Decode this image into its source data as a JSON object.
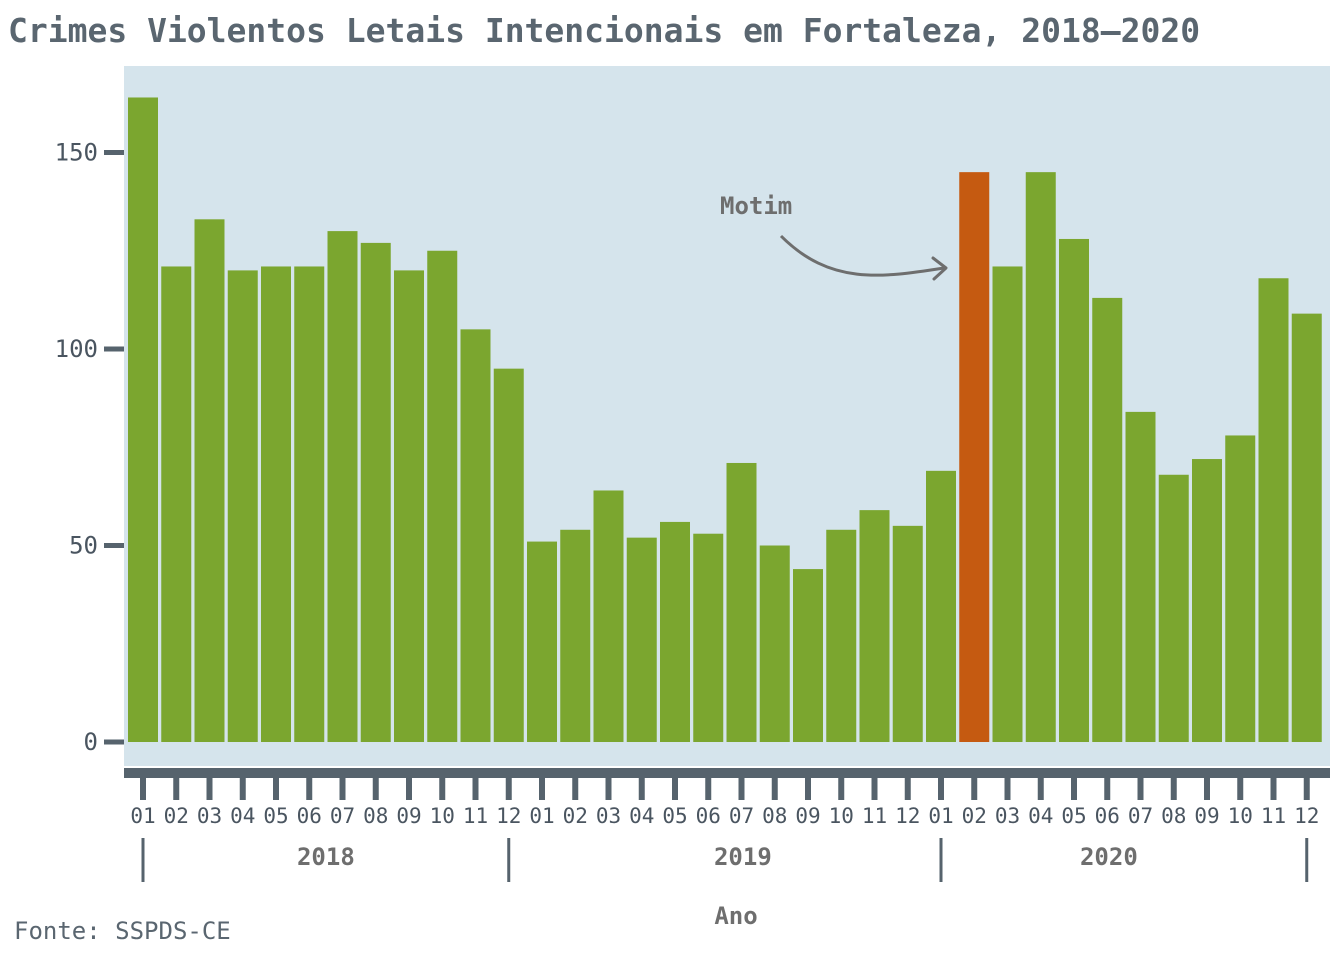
{
  "chart_data": {
    "type": "bar",
    "title": "Crimes Violentos Letais Intencionais em Fortaleza, 2018–2020",
    "xlabel": "Ano",
    "ylabel": "",
    "ylim": [
      0,
      165
    ],
    "yticks": [
      0,
      50,
      100,
      150
    ],
    "grid": false,
    "years": [
      "2018",
      "2019",
      "2020"
    ],
    "categories": [
      "01",
      "02",
      "03",
      "04",
      "05",
      "06",
      "07",
      "08",
      "09",
      "10",
      "11",
      "12",
      "01",
      "02",
      "03",
      "04",
      "05",
      "06",
      "07",
      "08",
      "09",
      "10",
      "11",
      "12",
      "01",
      "02",
      "03",
      "04",
      "05",
      "06",
      "07",
      "08",
      "09",
      "10",
      "11",
      "12"
    ],
    "values": [
      164,
      121,
      133,
      120,
      121,
      121,
      130,
      127,
      120,
      125,
      105,
      95,
      51,
      54,
      64,
      52,
      56,
      53,
      71,
      50,
      44,
      54,
      59,
      55,
      69,
      145,
      121,
      145,
      128,
      113,
      84,
      68,
      72,
      78,
      118,
      109
    ],
    "highlight_index": 25,
    "annotation": {
      "text": "Motim",
      "target": "2020-02"
    },
    "source": "Fonte: SSPDS-CE",
    "colors": {
      "bar": "#7ba62f",
      "highlight": "#c55a11",
      "panel": "#d5e4ec",
      "axis": "#56636d",
      "text": "#4a5560",
      "annotation": "#6e6e6e"
    }
  }
}
